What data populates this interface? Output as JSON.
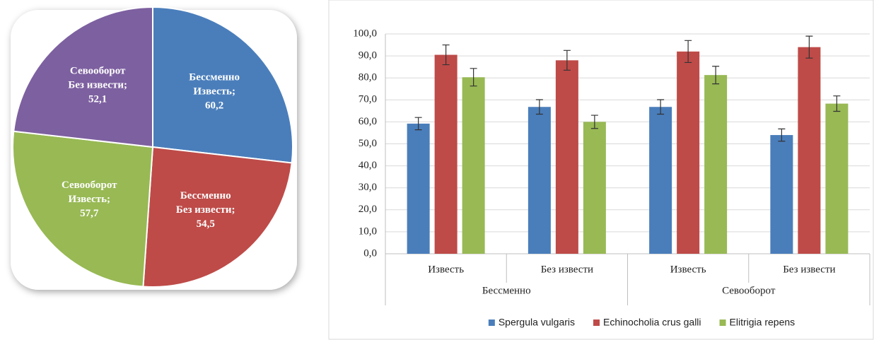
{
  "chart_data": [
    {
      "type": "pie",
      "categories": [
        [
          "Бессменно",
          "Известь;"
        ],
        [
          "Бессменно",
          "Без извести;"
        ],
        [
          "Севооборот",
          "Известь;"
        ],
        [
          "Севооборот",
          "Без извести;"
        ]
      ],
      "values": [
        60.2,
        54.5,
        57.7,
        52.1
      ],
      "value_labels": [
        "60,2",
        "54,5",
        "57,7",
        "52,1"
      ],
      "colors": [
        "#4a7ebb",
        "#be4b48",
        "#98b954",
        "#7d60a0"
      ]
    },
    {
      "type": "bar",
      "categories": [
        "Известь",
        "Без извести",
        "Известь",
        "Без извести"
      ],
      "groups": [
        "Бессменно",
        "Севооборот"
      ],
      "series": [
        {
          "name": "Spergula vulgaris",
          "color": "#4a7ebb",
          "values": [
            59.2,
            66.8,
            66.8,
            54.0
          ],
          "errors": [
            2.8,
            3.3,
            3.3,
            2.8
          ]
        },
        {
          "name": "Echinocholia crus galli",
          "color": "#be4b48",
          "values": [
            90.5,
            88.0,
            92.0,
            94.0
          ],
          "errors": [
            4.5,
            4.5,
            5.0,
            5.0
          ]
        },
        {
          "name": "Elitrigia repens",
          "color": "#98b954",
          "values": [
            80.3,
            60.0,
            81.3,
            68.3
          ],
          "errors": [
            4.0,
            3.0,
            4.0,
            3.5
          ]
        }
      ],
      "ylim": [
        0,
        100
      ],
      "yticks": [
        {
          "value": 0,
          "label": "0,0"
        },
        {
          "value": 10,
          "label": "10,0"
        },
        {
          "value": 20,
          "label": "20,0"
        },
        {
          "value": 30,
          "label": "30,0"
        },
        {
          "value": 40,
          "label": "40,0"
        },
        {
          "value": 50,
          "label": "50,0"
        },
        {
          "value": 60,
          "label": "60,0"
        },
        {
          "value": 70,
          "label": "70,0"
        },
        {
          "value": 80,
          "label": "80,0"
        },
        {
          "value": 90,
          "label": "90,0"
        },
        {
          "value": 100,
          "label": "100,0"
        }
      ],
      "grid": true,
      "legend": "bottom"
    }
  ]
}
